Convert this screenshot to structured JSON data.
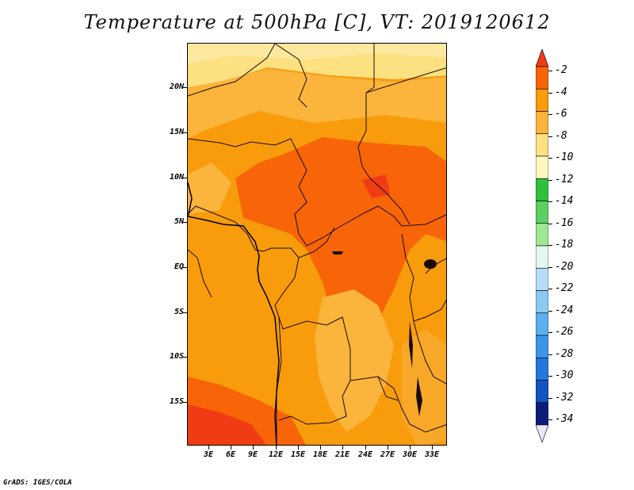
{
  "title": "Temperature at 500hPa [C], VT: 2019120612",
  "credit": "GrADS: IGES/COLA",
  "map": {
    "lat_range": [
      -20,
      24
    ],
    "lon_range": [
      0,
      35
    ],
    "lat_ticks": [
      "20N",
      "15N",
      "10N",
      "5N",
      "EQ",
      "5S",
      "10S",
      "15S"
    ],
    "lon_ticks": [
      "3E",
      "6E",
      "9E",
      "12E",
      "15E",
      "18E",
      "21E",
      "24E",
      "27E",
      "30E",
      "33E"
    ]
  },
  "colorbar": {
    "labels": [
      "-2",
      "-4",
      "-6",
      "-8",
      "-10",
      "-12",
      "-14",
      "-16",
      "-18",
      "-20",
      "-22",
      "-24",
      "-26",
      "-28",
      "-30",
      "-32",
      "-34"
    ],
    "colors": [
      "#f03c14",
      "#f86408",
      "#f89c0c",
      "#fbb43c",
      "#fde080",
      "#fff8c0",
      "#30c03c",
      "#5cd060",
      "#a0e694",
      "#e4f8f0",
      "#b8dcf8",
      "#8ccaf4",
      "#5cb0f0",
      "#3c96e6",
      "#2478dc",
      "#1254c0",
      "#0c1c78",
      "#e8e8f8"
    ]
  }
}
